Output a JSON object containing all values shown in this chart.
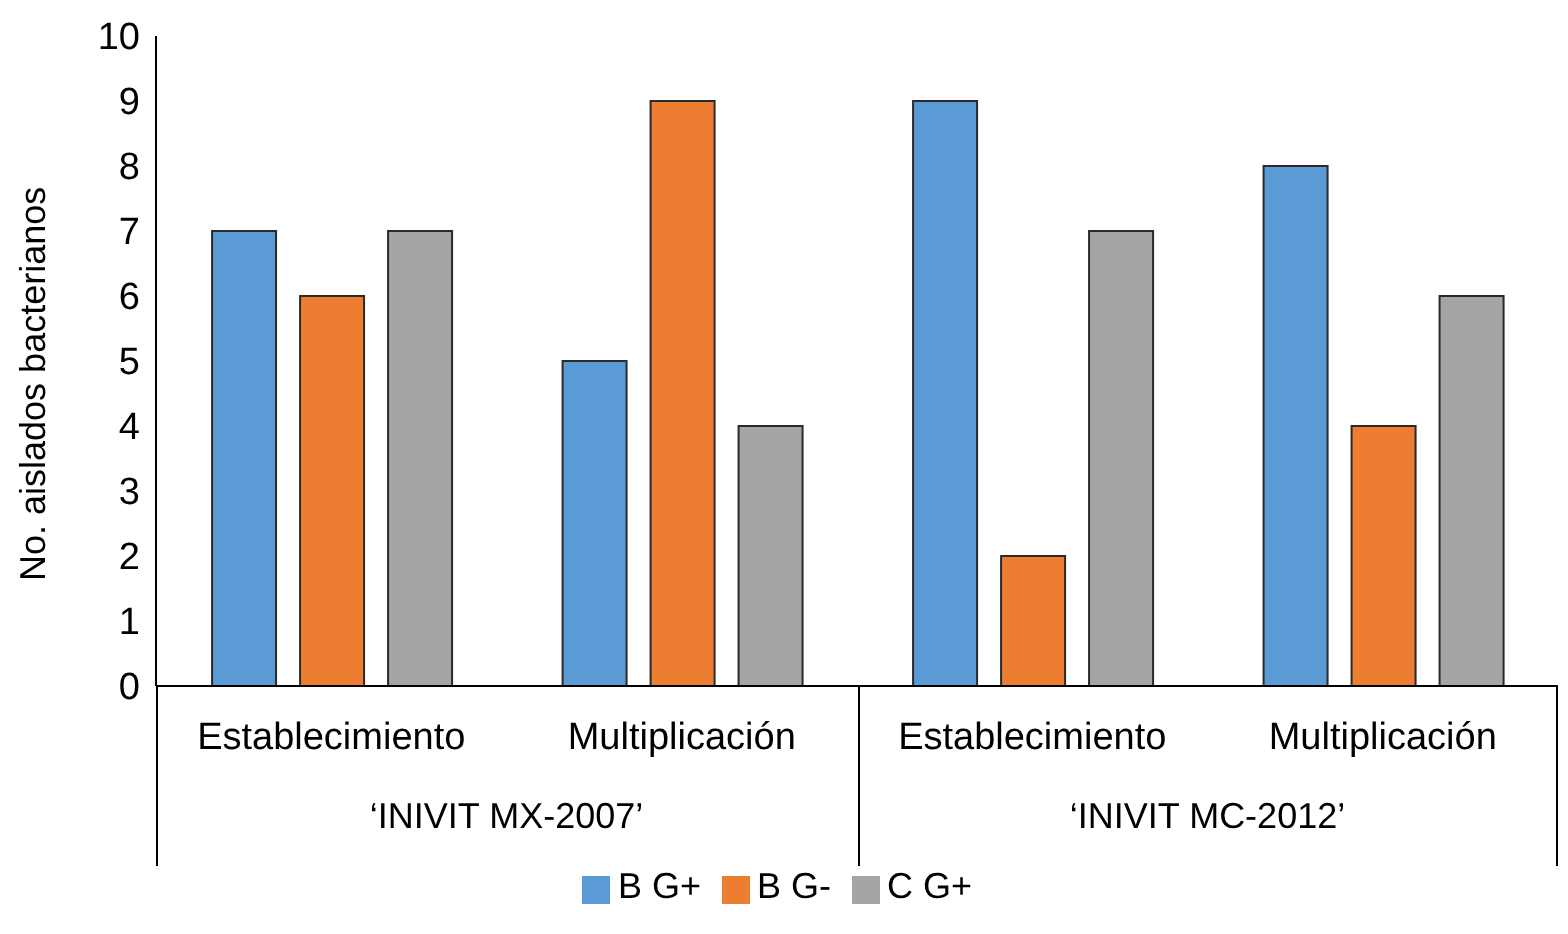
{
  "chart_data": {
    "type": "bar",
    "ylabel": "No. aislados bacterianos",
    "categories": [
      "Establecimiento",
      "Multiplicación",
      "Establecimiento",
      "Multiplicación"
    ],
    "annotations": [
      "‘INIVIT MX-2007’",
      "‘INIVIT MC-2012’"
    ],
    "series": [
      {
        "name": "B G+",
        "color": "#5b9bd5",
        "values": [
          7,
          5,
          9,
          8
        ]
      },
      {
        "name": "B G-",
        "color": "#ed7d31",
        "values": [
          6,
          9,
          2,
          4
        ]
      },
      {
        "name": "C G+",
        "color": "#a5a5a5",
        "values": [
          7,
          4,
          7,
          6
        ]
      }
    ],
    "ylim": [
      0,
      10
    ],
    "yticks": [
      0,
      1,
      2,
      3,
      4,
      5,
      6,
      7,
      8,
      9,
      10
    ],
    "grid": false,
    "legend": "bottom"
  }
}
